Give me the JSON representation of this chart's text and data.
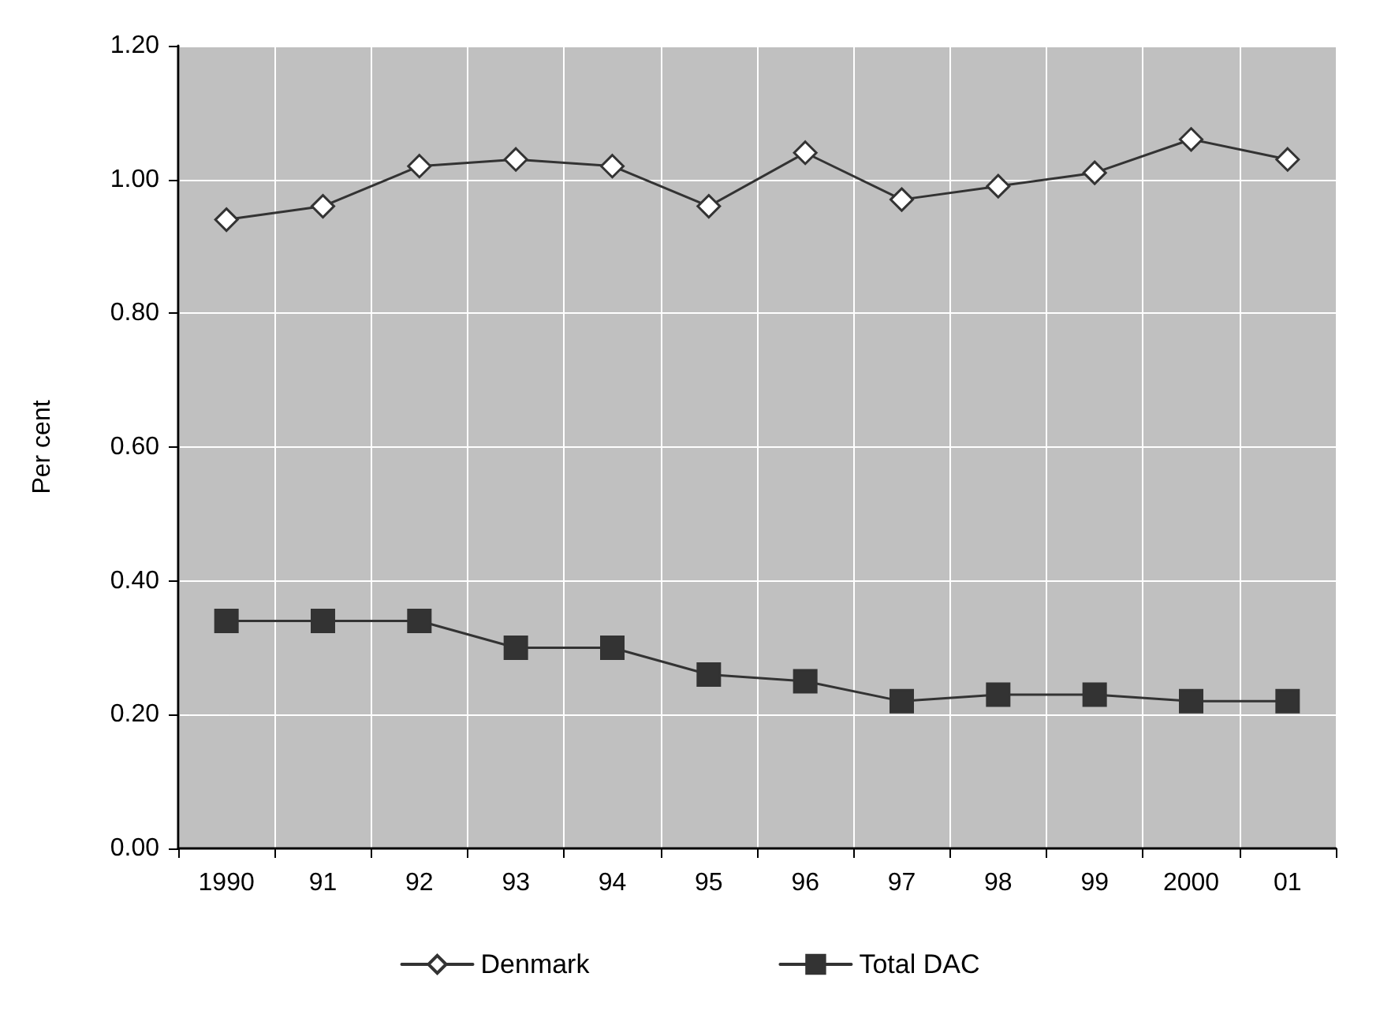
{
  "chart_data": {
    "type": "line",
    "ylabel": "Per cent",
    "categories": [
      "1990",
      "91",
      "92",
      "93",
      "94",
      "95",
      "96",
      "97",
      "98",
      "99",
      "2000",
      "01"
    ],
    "series": [
      {
        "name": "Denmark",
        "color": "#333333",
        "marker": "diamond",
        "values": [
          0.94,
          0.96,
          1.02,
          1.03,
          1.02,
          0.96,
          1.04,
          0.97,
          0.99,
          1.01,
          1.06,
          1.03
        ]
      },
      {
        "name": "Total DAC",
        "color": "#333333",
        "marker": "square",
        "values": [
          0.34,
          0.34,
          0.34,
          0.3,
          0.3,
          0.26,
          0.25,
          0.22,
          0.23,
          0.23,
          0.22,
          0.22
        ]
      }
    ],
    "ylim": [
      0,
      1.2
    ],
    "yticks": [
      {
        "value": 0,
        "label": "0.00"
      },
      {
        "value": 0.2,
        "label": "0.20"
      },
      {
        "value": 0.4,
        "label": "0.40"
      },
      {
        "value": 0.6,
        "label": "0.60"
      },
      {
        "value": 0.8,
        "label": "0.80"
      },
      {
        "value": 1.0,
        "label": "1.00"
      },
      {
        "value": 1.2,
        "label": "1.20"
      }
    ],
    "grid": true,
    "legend": "bottom",
    "line_style": "solid"
  }
}
